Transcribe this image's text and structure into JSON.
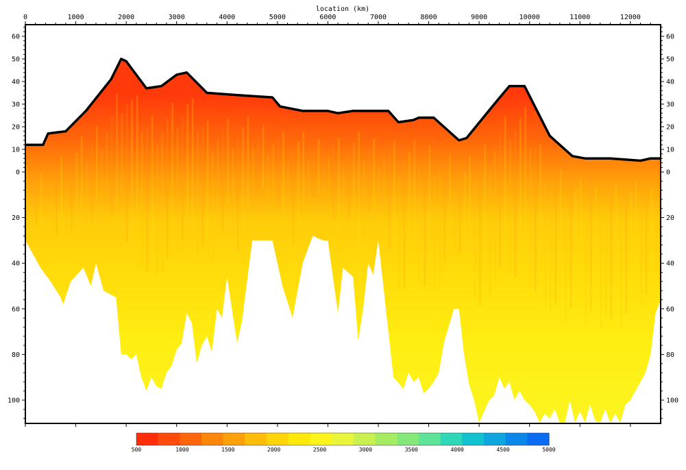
{
  "chart_data": {
    "type": "heatmap",
    "title": "",
    "xlabel": "location (km)",
    "ylabel": "",
    "xlim": [
      0,
      12600
    ],
    "x_ticks": [
      0,
      1000,
      2000,
      3000,
      4000,
      5000,
      6000,
      7000,
      8000,
      9000,
      10000,
      11000,
      12000
    ],
    "x_tick_labels": [
      "0",
      "1000",
      "2000",
      "3000",
      "4000",
      "5000",
      "6000",
      "7000",
      "8000",
      "9000",
      "10000",
      "11000",
      "12000"
    ],
    "y_top": {
      "range": [
        -5,
        65
      ],
      "ticks": [
        0,
        10,
        20,
        30,
        40,
        50,
        60
      ],
      "tick_labels": [
        "0",
        "10",
        "20",
        "30",
        "40",
        "50",
        "60"
      ]
    },
    "y_bottom": {
      "range": [
        0,
        110
      ],
      "ticks": [
        20,
        40,
        60,
        80,
        100
      ],
      "tick_labels": [
        "20",
        "40",
        "60",
        "80",
        "100"
      ]
    },
    "colorbar": {
      "min": 500,
      "max": 5000,
      "tick_values": [
        500,
        1000,
        1500,
        2000,
        2500,
        3000,
        3500,
        4000,
        4500,
        5000
      ],
      "tick_labels": [
        "500",
        "1000",
        "1500",
        "2000",
        "2500",
        "3000",
        "3500",
        "4000",
        "4500",
        "5000"
      ],
      "colors": [
        "#ff2d0a",
        "#ff4a0a",
        "#ff650a",
        "#ff860a",
        "#ffa10a",
        "#ffbd0a",
        "#ffd50a",
        "#ffe90a",
        "#fdf41c",
        "#e9f53a",
        "#c9f050",
        "#a5ec62",
        "#84e878",
        "#5fe398",
        "#2ed7b8",
        "#12c2ce",
        "#0ea6de",
        "#0a88ea",
        "#0a6cf2"
      ]
    },
    "surface_profile": {
      "location": [
        0,
        350,
        450,
        800,
        1200,
        1700,
        1900,
        2000,
        2400,
        2700,
        3000,
        3200,
        3600,
        4200,
        4900,
        5050,
        5500,
        6000,
        6200,
        6500,
        7100,
        7200,
        7400,
        7700,
        7800,
        8100,
        8600,
        8750,
        9300,
        9600,
        9900,
        10400,
        10850,
        11100,
        11600,
        12200,
        12400,
        12600
      ],
      "elevation": [
        12,
        12,
        17,
        18,
        27,
        41,
        50,
        49,
        37,
        38,
        43,
        44,
        35,
        34,
        33,
        29,
        27,
        27,
        26,
        27,
        27,
        27,
        22,
        23,
        24,
        24,
        14,
        15,
        30,
        38,
        38,
        16,
        7,
        6,
        6,
        5,
        6,
        6
      ]
    },
    "depth_extent": {
      "location": [
        0,
        300,
        500,
        700,
        750,
        900,
        1150,
        1300,
        1400,
        1550,
        1800,
        1900,
        2000,
        2100,
        2200,
        2300,
        2400,
        2500,
        2600,
        2700,
        2800,
        2900,
        3000,
        3100,
        3200,
        3300,
        3400,
        3500,
        3600,
        3700,
        3800,
        3900,
        4000,
        4200,
        4300,
        4500,
        4700,
        4900,
        5100,
        5300,
        5500,
        5700,
        5900,
        6000,
        6200,
        6300,
        6500,
        6600,
        6700,
        6800,
        6900,
        7000,
        7200,
        7300,
        7500,
        7600,
        7700,
        7800,
        7900,
        8000,
        8100,
        8200,
        8300,
        8500,
        8600,
        8700,
        8800,
        8900,
        9000,
        9100,
        9200,
        9300,
        9400,
        9500,
        9600,
        9700,
        9800,
        9900,
        10000,
        10100,
        10200,
        10300,
        10400,
        10500,
        10600,
        10700,
        10800,
        10900,
        11000,
        11100,
        11200,
        11300,
        11400,
        11500,
        11600,
        11700,
        11800,
        11900,
        12000,
        12100,
        12200,
        12300,
        12400,
        12500,
        12600
      ],
      "depth": [
        30,
        42,
        48,
        55,
        58,
        48,
        42,
        50,
        40,
        52,
        55,
        80,
        80,
        82,
        80,
        90,
        96,
        90,
        94,
        95,
        88,
        85,
        78,
        75,
        62,
        66,
        84,
        76,
        72,
        79,
        60,
        64,
        46,
        75,
        65,
        30,
        30,
        30,
        50,
        64,
        40,
        28,
        30,
        30,
        62,
        42,
        46,
        74,
        60,
        40,
        45,
        30,
        70,
        90,
        95,
        88,
        92,
        90,
        97,
        95,
        92,
        88,
        75,
        60,
        60,
        80,
        93,
        100,
        110,
        105,
        100,
        98,
        90,
        95,
        92,
        100,
        96,
        100,
        102,
        105,
        110,
        106,
        108,
        104,
        110,
        110,
        100,
        110,
        105,
        110,
        102,
        109,
        110,
        104,
        110,
        106,
        110,
        102,
        100,
        96,
        92,
        88,
        80,
        62,
        56
      ]
    }
  }
}
